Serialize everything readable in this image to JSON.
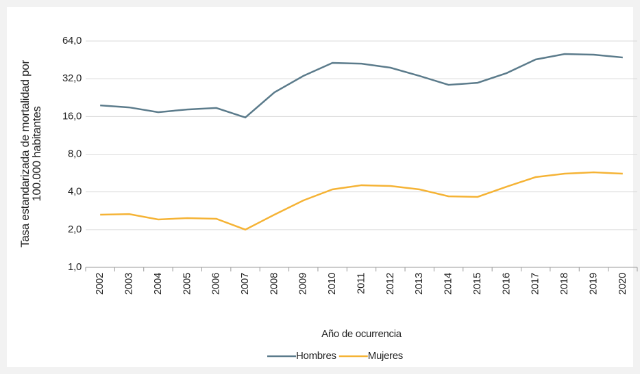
{
  "chart_data": {
    "type": "line",
    "ylabel": [
      "Tasa estandarizada de mortalidad por",
      "100.000 habitantes"
    ],
    "xlabel": "Año de ocurrencia",
    "categories": [
      "2002",
      "2003",
      "2004",
      "2005",
      "2006",
      "2007",
      "2008",
      "2009",
      "2010",
      "2011",
      "2012",
      "2013",
      "2014",
      "2015",
      "2016",
      "2017",
      "2018",
      "2019",
      "2020"
    ],
    "series": [
      {
        "name": "Hombres",
        "color": "#5b7b8b",
        "values": [
          19.6,
          18.9,
          17.3,
          18.2,
          18.7,
          15.7,
          24.9,
          33.7,
          42.8,
          42.2,
          39.2,
          33.7,
          28.6,
          29.7,
          35.5,
          45.6,
          50.4,
          49.8,
          47.3
        ]
      },
      {
        "name": "Mujeres",
        "color": "#f5b335",
        "values": [
          2.63,
          2.66,
          2.41,
          2.47,
          2.44,
          2.0,
          2.63,
          3.42,
          4.19,
          4.52,
          4.46,
          4.19,
          3.69,
          3.65,
          4.4,
          5.25,
          5.59,
          5.73,
          5.59
        ]
      }
    ],
    "ylim": [
      1,
      64
    ],
    "log_scale": true,
    "log_base": 2,
    "yticks": [
      {
        "value": 1,
        "label": "1,0"
      },
      {
        "value": 2,
        "label": "2,0"
      },
      {
        "value": 4,
        "label": "4,0"
      },
      {
        "value": 8,
        "label": "8,0"
      },
      {
        "value": 16,
        "label": "16,0"
      },
      {
        "value": 32,
        "label": "32,0"
      },
      {
        "value": 64,
        "label": "64,0"
      }
    ],
    "grid": true,
    "legend": "bottom"
  }
}
